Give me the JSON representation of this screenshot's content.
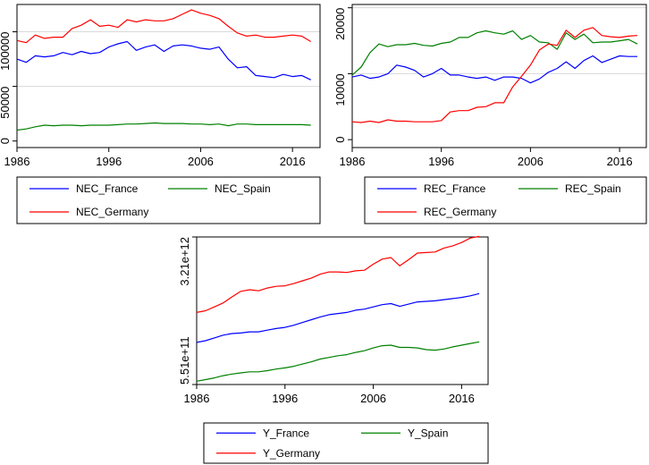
{
  "chart_data": [
    {
      "id": "nec",
      "type": "line",
      "title": "",
      "xlabel": "",
      "ylabel": "",
      "xlim": [
        1986,
        2019
      ],
      "ylim": [
        -6000,
        125000
      ],
      "xticks": [
        1986,
        1996,
        2006,
        2016
      ],
      "yticks": [
        0,
        50000,
        100000
      ],
      "ytick_labels": [
        "0",
        "50000",
        "100000"
      ],
      "gridlines_y": [
        50000,
        100000
      ],
      "legend_placement": "bottom",
      "x": [
        1986,
        1987,
        1988,
        1989,
        1990,
        1991,
        1992,
        1993,
        1994,
        1995,
        1996,
        1997,
        1998,
        1999,
        2000,
        2001,
        2002,
        2003,
        2004,
        2005,
        2006,
        2007,
        2008,
        2009,
        2010,
        2011,
        2012,
        2013,
        2014,
        2015,
        2016,
        2017,
        2018
      ],
      "series": [
        {
          "name": "NEC_France",
          "color": "#0000ff",
          "values": [
            75000,
            72000,
            78000,
            77000,
            78000,
            81000,
            79000,
            82000,
            80000,
            81000,
            86000,
            89000,
            91000,
            83000,
            86000,
            88000,
            82000,
            87000,
            88000,
            87000,
            85000,
            84000,
            86000,
            75000,
            67000,
            68000,
            60000,
            59000,
            58000,
            61000,
            59000,
            60000,
            56000
          ]
        },
        {
          "name": "NEC_Spain",
          "color": "#008000",
          "values": [
            10000,
            11000,
            13000,
            14500,
            14000,
            14500,
            14500,
            14000,
            14500,
            14500,
            14500,
            15000,
            15500,
            15500,
            16000,
            16500,
            16000,
            16000,
            16000,
            15500,
            15500,
            15000,
            15500,
            14000,
            15500,
            15500,
            15000,
            15000,
            15000,
            15000,
            15000,
            15000,
            14500
          ]
        },
        {
          "name": "NEC_Germany",
          "color": "#ff0000",
          "values": [
            92000,
            90000,
            97000,
            94000,
            95000,
            95000,
            103000,
            106000,
            111000,
            105000,
            106000,
            104000,
            111000,
            109000,
            111000,
            110000,
            110000,
            112000,
            116000,
            120000,
            117000,
            115000,
            112000,
            105000,
            99000,
            96000,
            97000,
            95000,
            95000,
            96000,
            97000,
            96000,
            91000
          ]
        }
      ]
    },
    {
      "id": "rec",
      "type": "line",
      "title": "",
      "xlabel": "",
      "ylabel": "",
      "xlim": [
        1986,
        2019
      ],
      "ylim": [
        -1200,
        20500
      ],
      "xticks": [
        1986,
        1996,
        2006,
        2016
      ],
      "yticks": [
        0,
        10000,
        20000
      ],
      "ytick_labels": [
        "0",
        "10000",
        "20000"
      ],
      "gridlines_y": [
        10000,
        20000
      ],
      "legend_placement": "bottom",
      "x": [
        1986,
        1987,
        1988,
        1989,
        1990,
        1991,
        1992,
        1993,
        1994,
        1995,
        1996,
        1997,
        1998,
        1999,
        2000,
        2001,
        2002,
        2003,
        2004,
        2005,
        2006,
        2007,
        2008,
        2009,
        2010,
        2011,
        2012,
        2013,
        2014,
        2015,
        2016,
        2017,
        2018
      ],
      "series": [
        {
          "name": "REC_France",
          "color": "#0000ff",
          "values": [
            9500,
            9800,
            9300,
            9500,
            10000,
            11300,
            11000,
            10500,
            9500,
            10000,
            10800,
            9800,
            9800,
            9500,
            9300,
            9500,
            9000,
            9500,
            9500,
            9300,
            8600,
            9200,
            10200,
            10800,
            11800,
            10800,
            12000,
            12700,
            11700,
            12200,
            12700,
            12600,
            12600
          ]
        },
        {
          "name": "REC_Spain",
          "color": "#008000",
          "values": [
            9800,
            11000,
            13200,
            14500,
            14100,
            14400,
            14400,
            14600,
            14300,
            14200,
            14600,
            14800,
            15500,
            15500,
            16200,
            16500,
            16200,
            16000,
            16500,
            15200,
            15800,
            14800,
            14700,
            13700,
            16200,
            15200,
            16000,
            14700,
            14800,
            14800,
            15000,
            15200,
            14500
          ]
        },
        {
          "name": "REC_Germany",
          "color": "#ff0000",
          "values": [
            2700,
            2600,
            2800,
            2600,
            3000,
            2800,
            2800,
            2700,
            2700,
            2700,
            2900,
            4200,
            4400,
            4400,
            4900,
            5000,
            5600,
            5600,
            8000,
            9600,
            11300,
            13600,
            14500,
            14300,
            16600,
            15500,
            16600,
            17000,
            15800,
            15600,
            15500,
            15700,
            15800
          ]
        }
      ]
    },
    {
      "id": "y",
      "type": "line",
      "title": "",
      "xlabel": "",
      "ylabel": "",
      "xlim": [
        1986,
        2019
      ],
      "ylim": [
        551000000000.0,
        3210000000000.0
      ],
      "xticks": [
        1986,
        1996,
        2006,
        2016
      ],
      "yticks": [
        551000000000.0,
        3210000000000.0
      ],
      "ytick_labels": [
        "5.51e+11",
        "3.21e+12"
      ],
      "gridlines_y": [
        3210000000000.0
      ],
      "legend_placement": "bottom",
      "x": [
        1986,
        1987,
        1988,
        1989,
        1990,
        1991,
        1992,
        1993,
        1994,
        1995,
        1996,
        1997,
        1998,
        1999,
        2000,
        2001,
        2002,
        2003,
        2004,
        2005,
        2006,
        2007,
        2008,
        2009,
        2010,
        2011,
        2012,
        2013,
        2014,
        2015,
        2016,
        2017,
        2018
      ],
      "series": [
        {
          "name": "Y_France",
          "color": "#0000ff",
          "values": [
            1310000000000.0,
            1340000000000.0,
            1390000000000.0,
            1440000000000.0,
            1470000000000.0,
            1480000000000.0,
            1500000000000.0,
            1500000000000.0,
            1530000000000.0,
            1560000000000.0,
            1580000000000.0,
            1620000000000.0,
            1670000000000.0,
            1720000000000.0,
            1770000000000.0,
            1810000000000.0,
            1830000000000.0,
            1850000000000.0,
            1890000000000.0,
            1910000000000.0,
            1950000000000.0,
            1990000000000.0,
            2010000000000.0,
            1960000000000.0,
            2000000000000.0,
            2040000000000.0,
            2050000000000.0,
            2060000000000.0,
            2080000000000.0,
            2100000000000.0,
            2120000000000.0,
            2150000000000.0,
            2190000000000.0
          ]
        },
        {
          "name": "Y_Spain",
          "color": "#008000",
          "values": [
            610000000000.0,
            640000000000.0,
            670000000000.0,
            710000000000.0,
            740000000000.0,
            760000000000.0,
            780000000000.0,
            780000000000.0,
            800000000000.0,
            830000000000.0,
            850000000000.0,
            880000000000.0,
            920000000000.0,
            960000000000.0,
            1010000000000.0,
            1040000000000.0,
            1070000000000.0,
            1090000000000.0,
            1130000000000.0,
            1160000000000.0,
            1210000000000.0,
            1250000000000.0,
            1260000000000.0,
            1220000000000.0,
            1220000000000.0,
            1210000000000.0,
            1180000000000.0,
            1170000000000.0,
            1190000000000.0,
            1230000000000.0,
            1260000000000.0,
            1290000000000.0,
            1320000000000.0
          ]
        },
        {
          "name": "Y_Germany",
          "color": "#ff0000",
          "values": [
            1850000000000.0,
            1880000000000.0,
            1950000000000.0,
            2020000000000.0,
            2130000000000.0,
            2230000000000.0,
            2260000000000.0,
            2240000000000.0,
            2290000000000.0,
            2320000000000.0,
            2330000000000.0,
            2370000000000.0,
            2420000000000.0,
            2470000000000.0,
            2540000000000.0,
            2580000000000.0,
            2580000000000.0,
            2570000000000.0,
            2600000000000.0,
            2610000000000.0,
            2720000000000.0,
            2810000000000.0,
            2840000000000.0,
            2690000000000.0,
            2800000000000.0,
            2920000000000.0,
            2930000000000.0,
            2940000000000.0,
            3010000000000.0,
            3050000000000.0,
            3110000000000.0,
            3190000000000.0,
            3220000000000.0
          ]
        }
      ]
    }
  ]
}
